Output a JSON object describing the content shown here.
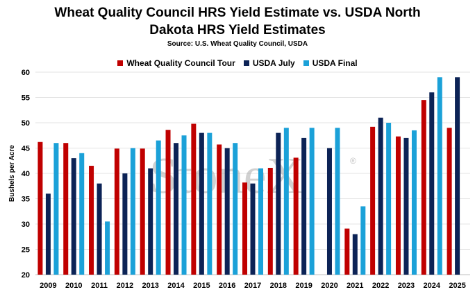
{
  "chart_data": {
    "type": "bar",
    "title_line1": "Wheat Quality Council HRS Yield Estimate vs. USDA North",
    "title_line2": "Dakota HRS Yield Estimates",
    "subtitle": "Source: U.S. Wheat Quality Council, USDA",
    "ylabel": "Bushels per Acre",
    "xlabel": "",
    "ylim": [
      20,
      60
    ],
    "yticks": [
      20,
      25,
      30,
      35,
      40,
      45,
      50,
      55,
      60
    ],
    "grid": true,
    "legend_position": "top",
    "watermark": "StoneX",
    "watermark_mark": "®",
    "categories": [
      "2009",
      "2010",
      "2011",
      "2012",
      "2013",
      "2014",
      "2015",
      "2016",
      "2017",
      "2018",
      "2019",
      "2020",
      "2021",
      "2022",
      "2023",
      "2024",
      "2025"
    ],
    "series": [
      {
        "name": "Wheat Quality Council Tour",
        "color": "#c00000",
        "values": [
          46.2,
          46.0,
          41.5,
          44.9,
          44.9,
          48.6,
          49.8,
          45.7,
          38.2,
          41.1,
          43.1,
          null,
          29.1,
          49.2,
          47.3,
          54.5,
          49.0
        ]
      },
      {
        "name": "USDA July",
        "color": "#0c2356",
        "values": [
          36.0,
          43.0,
          38.0,
          40.0,
          41.0,
          46.0,
          48.0,
          45.0,
          38.0,
          48.0,
          47.0,
          45.0,
          28.0,
          51.0,
          47.0,
          56.0,
          59.0
        ]
      },
      {
        "name": "USDA Final",
        "color": "#1ba1d8",
        "values": [
          46.0,
          44.0,
          30.5,
          45.0,
          46.5,
          47.5,
          48.0,
          46.0,
          41.0,
          49.0,
          49.0,
          49.0,
          33.5,
          50.0,
          48.5,
          59.0,
          null
        ]
      }
    ]
  }
}
